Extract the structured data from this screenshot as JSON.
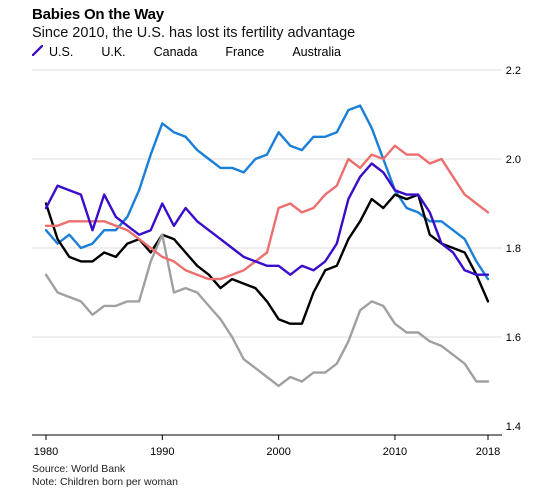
{
  "chart_data": {
    "type": "line",
    "title": "Babies On the Way",
    "subtitle": "Since 2010, the U.S. has lost its fertility advantage",
    "xlabel": "",
    "ylabel": "",
    "xlim": [
      1980,
      2018
    ],
    "ylim": [
      1.4,
      2.2
    ],
    "x_ticks": [
      {
        "value": 1980,
        "label": "1980"
      },
      {
        "value": 1990,
        "label": "1990"
      },
      {
        "value": 2000,
        "label": "2000"
      },
      {
        "value": 2010,
        "label": "2010"
      },
      {
        "value": 2018,
        "label": "2018"
      }
    ],
    "y_ticks": [
      {
        "value": 1.4,
        "label": "1.4"
      },
      {
        "value": 1.6,
        "label": "1.6"
      },
      {
        "value": 1.8,
        "label": "1.8"
      },
      {
        "value": 2.0,
        "label": "2.0"
      },
      {
        "value": 2.2,
        "label": "2.2"
      }
    ],
    "grid": true,
    "legend_position": "top-left",
    "x": [
      1980,
      1981,
      1982,
      1983,
      1984,
      1985,
      1986,
      1987,
      1988,
      1989,
      1990,
      1991,
      1992,
      1993,
      1994,
      1995,
      1996,
      1997,
      1998,
      1999,
      2000,
      2001,
      2002,
      2003,
      2004,
      2005,
      2006,
      2007,
      2008,
      2009,
      2010,
      2011,
      2012,
      2013,
      2014,
      2015,
      2016,
      2017,
      2018
    ],
    "series": [
      {
        "name": "U.S.",
        "color": "#1a7fd8",
        "values": [
          1.84,
          1.81,
          1.83,
          1.8,
          1.81,
          1.84,
          1.84,
          1.87,
          1.93,
          2.01,
          2.08,
          2.06,
          2.05,
          2.02,
          2.0,
          1.98,
          1.98,
          1.97,
          2.0,
          2.01,
          2.06,
          2.03,
          2.02,
          2.05,
          2.05,
          2.06,
          2.11,
          2.12,
          2.07,
          2.0,
          1.93,
          1.89,
          1.88,
          1.86,
          1.86,
          1.84,
          1.82,
          1.77,
          1.73
        ]
      },
      {
        "name": "U.K.",
        "color": "#000000",
        "values": [
          1.9,
          1.82,
          1.78,
          1.77,
          1.77,
          1.79,
          1.78,
          1.81,
          1.82,
          1.79,
          1.83,
          1.82,
          1.79,
          1.76,
          1.74,
          1.71,
          1.73,
          1.72,
          1.71,
          1.68,
          1.64,
          1.63,
          1.63,
          1.7,
          1.75,
          1.76,
          1.82,
          1.86,
          1.91,
          1.89,
          1.92,
          1.91,
          1.92,
          1.83,
          1.81,
          1.8,
          1.79,
          1.74,
          1.68
        ]
      },
      {
        "name": "Canada",
        "color": "#a0a0a0",
        "values": [
          1.74,
          1.7,
          1.69,
          1.68,
          1.65,
          1.67,
          1.67,
          1.68,
          1.68,
          1.77,
          1.83,
          1.7,
          1.71,
          1.7,
          1.67,
          1.64,
          1.6,
          1.55,
          1.53,
          1.51,
          1.49,
          1.51,
          1.5,
          1.52,
          1.52,
          1.54,
          1.59,
          1.66,
          1.68,
          1.67,
          1.63,
          1.61,
          1.61,
          1.59,
          1.58,
          1.56,
          1.54,
          1.5,
          1.5
        ]
      },
      {
        "name": "France",
        "color": "#ec6e6e",
        "values": [
          1.85,
          1.85,
          1.86,
          1.86,
          1.86,
          1.86,
          1.85,
          1.84,
          1.82,
          1.8,
          1.78,
          1.77,
          1.75,
          1.74,
          1.73,
          1.73,
          1.74,
          1.75,
          1.77,
          1.79,
          1.89,
          1.9,
          1.88,
          1.89,
          1.92,
          1.94,
          2.0,
          1.98,
          2.01,
          2.0,
          2.03,
          2.01,
          2.01,
          1.99,
          2.0,
          1.96,
          1.92,
          1.9,
          1.88
        ]
      },
      {
        "name": "Australia",
        "color": "#3a0ccc",
        "values": [
          1.89,
          1.94,
          1.93,
          1.92,
          1.84,
          1.92,
          1.87,
          1.85,
          1.83,
          1.84,
          1.9,
          1.85,
          1.89,
          1.86,
          1.84,
          1.82,
          1.8,
          1.78,
          1.77,
          1.76,
          1.76,
          1.74,
          1.76,
          1.75,
          1.77,
          1.81,
          1.91,
          1.96,
          1.99,
          1.97,
          1.93,
          1.92,
          1.92,
          1.88,
          1.81,
          1.79,
          1.75,
          1.74,
          1.74
        ]
      }
    ]
  },
  "footer": {
    "source": "Source: World Bank",
    "note": "Note: Children born per woman"
  }
}
